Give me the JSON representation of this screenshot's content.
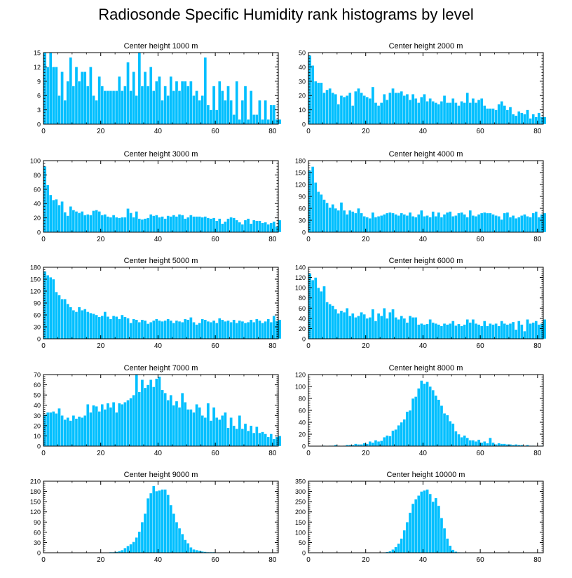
{
  "title": "Radiosonde Specific Humidity rank histograms by level",
  "colors": {
    "bar": "#00bfff",
    "bar_edge": "#ffffff",
    "axis": "#000000"
  },
  "chart_data": [
    {
      "type": "bar",
      "title": "Center height 1000 m",
      "xlim": [
        0,
        82
      ],
      "ylim": [
        0,
        15
      ],
      "xticks": [
        0,
        20,
        40,
        60,
        80
      ],
      "yticks": [
        0,
        3,
        6,
        9,
        12,
        15
      ],
      "values": [
        15,
        12,
        15,
        12,
        12,
        6,
        11,
        5,
        9,
        14,
        8,
        12,
        9,
        11,
        11,
        8,
        12,
        6,
        5,
        10,
        8,
        7,
        7,
        7,
        7,
        7,
        10,
        7,
        8,
        13,
        7,
        11,
        6,
        15,
        8,
        11,
        8,
        12,
        7,
        9,
        10,
        5,
        8,
        6,
        10,
        7,
        9,
        7,
        9,
        9,
        8,
        9,
        6,
        7,
        5,
        6,
        14,
        4,
        3,
        8,
        3,
        9,
        7,
        5,
        8,
        5,
        2,
        9,
        1,
        5,
        8,
        1,
        7,
        2,
        2,
        5,
        1,
        5,
        1,
        4,
        4,
        1,
        1
      ]
    },
    {
      "type": "bar",
      "title": "Center height 2000 m",
      "xlim": [
        0,
        82
      ],
      "ylim": [
        0,
        50
      ],
      "xticks": [
        0,
        20,
        40,
        60,
        80
      ],
      "yticks": [
        0,
        10,
        20,
        30,
        40,
        50
      ],
      "values": [
        48,
        41,
        30,
        29,
        29,
        22,
        24,
        25,
        22,
        21,
        14,
        20,
        19,
        20,
        22,
        13,
        23,
        25,
        22,
        20,
        19,
        18,
        26,
        15,
        13,
        15,
        21,
        17,
        22,
        25,
        22,
        22,
        23,
        20,
        21,
        17,
        21,
        18,
        15,
        19,
        21,
        16,
        18,
        16,
        15,
        14,
        16,
        20,
        15,
        15,
        18,
        15,
        13,
        16,
        15,
        22,
        15,
        18,
        15,
        17,
        18,
        13,
        11,
        11,
        11,
        10,
        14,
        16,
        13,
        10,
        12,
        7,
        6,
        9,
        8,
        7,
        10,
        4,
        7,
        5,
        8,
        5,
        5
      ]
    },
    {
      "type": "bar",
      "title": "Center height 3000 m",
      "xlim": [
        0,
        82
      ],
      "ylim": [
        0,
        100
      ],
      "xticks": [
        0,
        20,
        40,
        60,
        80
      ],
      "yticks": [
        0,
        20,
        40,
        60,
        80,
        100
      ],
      "values": [
        92,
        66,
        52,
        45,
        46,
        38,
        43,
        28,
        23,
        36,
        31,
        29,
        27,
        29,
        24,
        25,
        24,
        30,
        31,
        29,
        24,
        25,
        22,
        21,
        24,
        21,
        20,
        21,
        21,
        33,
        27,
        21,
        29,
        19,
        18,
        19,
        20,
        25,
        23,
        24,
        21,
        22,
        19,
        23,
        22,
        24,
        22,
        25,
        24,
        19,
        21,
        24,
        22,
        22,
        22,
        21,
        22,
        20,
        19,
        20,
        16,
        19,
        12,
        15,
        19,
        21,
        20,
        17,
        14,
        11,
        17,
        19,
        12,
        17,
        16,
        16,
        13,
        14,
        11,
        13,
        15,
        8,
        17
      ]
    },
    {
      "type": "bar",
      "title": "Center height 4000 m",
      "xlim": [
        0,
        82
      ],
      "ylim": [
        0,
        180
      ],
      "xticks": [
        0,
        20,
        40,
        60,
        80
      ],
      "yticks": [
        0,
        30,
        60,
        90,
        120,
        150,
        180
      ],
      "values": [
        155,
        165,
        125,
        102,
        95,
        82,
        74,
        62,
        70,
        60,
        55,
        75,
        55,
        45,
        55,
        52,
        48,
        60,
        48,
        40,
        38,
        35,
        50,
        38,
        40,
        42,
        45,
        48,
        50,
        48,
        45,
        42,
        48,
        45,
        42,
        50,
        40,
        38,
        45,
        55,
        40,
        42,
        38,
        52,
        40,
        50,
        38,
        45,
        50,
        52,
        40,
        42,
        48,
        50,
        45,
        38,
        55,
        42,
        40,
        45,
        48,
        50,
        48,
        48,
        45,
        42,
        40,
        32,
        48,
        50,
        38,
        42,
        35,
        38,
        42,
        45,
        40,
        38,
        48,
        52,
        38,
        45,
        48
      ]
    },
    {
      "type": "bar",
      "title": "Center height 5000 m",
      "xlim": [
        0,
        82
      ],
      "ylim": [
        0,
        180
      ],
      "xticks": [
        0,
        20,
        40,
        60,
        80
      ],
      "yticks": [
        0,
        30,
        60,
        90,
        120,
        150,
        180
      ],
      "values": [
        170,
        160,
        155,
        150,
        118,
        110,
        100,
        100,
        88,
        80,
        72,
        68,
        80,
        72,
        75,
        68,
        65,
        63,
        60,
        55,
        58,
        68,
        56,
        50,
        58,
        56,
        50,
        60,
        55,
        52,
        40,
        50,
        48,
        42,
        48,
        46,
        38,
        42,
        46,
        50,
        46,
        44,
        46,
        50,
        46,
        40,
        46,
        44,
        42,
        50,
        48,
        54,
        42,
        36,
        40,
        50,
        48,
        44,
        42,
        46,
        40,
        52,
        48,
        44,
        46,
        42,
        48,
        40,
        46,
        44,
        40,
        42,
        48,
        42,
        50,
        46,
        40,
        44,
        50,
        42,
        58,
        45,
        48
      ]
    },
    {
      "type": "bar",
      "title": "Center height 6000 m",
      "xlim": [
        0,
        82
      ],
      "ylim": [
        0,
        140
      ],
      "xticks": [
        0,
        20,
        40,
        60,
        80
      ],
      "yticks": [
        0,
        20,
        40,
        60,
        80,
        100,
        120,
        140
      ],
      "values": [
        128,
        115,
        120,
        100,
        93,
        103,
        72,
        68,
        65,
        58,
        50,
        55,
        52,
        60,
        45,
        50,
        42,
        45,
        52,
        48,
        40,
        42,
        58,
        35,
        50,
        45,
        60,
        40,
        52,
        58,
        42,
        38,
        45,
        40,
        32,
        45,
        42,
        42,
        28,
        30,
        28,
        29,
        38,
        32,
        30,
        28,
        25,
        30,
        28,
        30,
        35,
        26,
        29,
        25,
        28,
        38,
        32,
        38,
        30,
        28,
        25,
        35,
        25,
        30,
        28,
        30,
        25,
        35,
        30,
        28,
        30,
        33,
        18,
        35,
        28,
        15,
        38,
        30,
        32,
        35,
        28,
        30,
        38
      ]
    },
    {
      "type": "bar",
      "title": "Center height 7000 m",
      "xlim": [
        0,
        82
      ],
      "ylim": [
        0,
        70
      ],
      "xticks": [
        0,
        20,
        40,
        60,
        80
      ],
      "yticks": [
        0,
        10,
        20,
        30,
        40,
        50,
        60,
        70
      ],
      "values": [
        31,
        33,
        33,
        34,
        32,
        37,
        30,
        26,
        28,
        25,
        30,
        27,
        29,
        28,
        30,
        41,
        33,
        40,
        39,
        34,
        41,
        36,
        42,
        38,
        43,
        33,
        42,
        41,
        43,
        45,
        47,
        50,
        70,
        53,
        65,
        57,
        60,
        65,
        58,
        66,
        68,
        55,
        52,
        45,
        50,
        40,
        44,
        38,
        52,
        43,
        36,
        36,
        33,
        41,
        38,
        30,
        28,
        42,
        25,
        38,
        28,
        26,
        30,
        33,
        18,
        28,
        20,
        17,
        30,
        17,
        22,
        15,
        20,
        13,
        19,
        13,
        14,
        12,
        9,
        12,
        7,
        9,
        10
      ]
    },
    {
      "type": "bar",
      "title": "Center height 8000 m",
      "xlim": [
        0,
        82
      ],
      "ylim": [
        0,
        120
      ],
      "xticks": [
        0,
        20,
        40,
        60,
        80
      ],
      "yticks": [
        0,
        20,
        40,
        60,
        80,
        100,
        120
      ],
      "values": [
        0,
        0,
        0,
        0,
        0,
        1,
        0,
        1,
        1,
        2,
        1,
        0,
        1,
        2,
        2,
        2,
        4,
        3,
        3,
        5,
        4,
        8,
        6,
        10,
        8,
        9,
        15,
        18,
        17,
        26,
        28,
        35,
        40,
        45,
        58,
        60,
        80,
        83,
        97,
        110,
        105,
        108,
        100,
        94,
        85,
        78,
        68,
        55,
        52,
        42,
        38,
        25,
        20,
        15,
        18,
        14,
        10,
        10,
        8,
        11,
        6,
        8,
        5,
        14,
        6,
        3,
        5,
        4,
        4,
        3,
        3,
        2,
        3,
        2,
        2,
        1,
        2,
        1,
        1,
        0,
        0,
        1,
        0
      ]
    },
    {
      "type": "bar",
      "title": "Center height 9000 m",
      "xlim": [
        0,
        82
      ],
      "ylim": [
        0,
        210
      ],
      "xticks": [
        0,
        20,
        40,
        60,
        80
      ],
      "yticks": [
        0,
        30,
        60,
        90,
        120,
        150,
        180,
        210
      ],
      "values": [
        0,
        0,
        0,
        0,
        0,
        0,
        0,
        0,
        0,
        0,
        0,
        0,
        0,
        0,
        0,
        0,
        0,
        0,
        0,
        0,
        0,
        1,
        1,
        2,
        2,
        3,
        5,
        8,
        14,
        20,
        25,
        32,
        45,
        62,
        90,
        115,
        160,
        175,
        196,
        181,
        183,
        186,
        186,
        170,
        140,
        115,
        90,
        72,
        55,
        38,
        28,
        16,
        10,
        8,
        6,
        4,
        3,
        2,
        2,
        2,
        1,
        1,
        1,
        1,
        1,
        1,
        1,
        0,
        0,
        1,
        0,
        0,
        0,
        0,
        0,
        0,
        0,
        0,
        0,
        0,
        0,
        0,
        0
      ]
    },
    {
      "type": "bar",
      "title": "Center height 10000 m",
      "xlim": [
        0,
        82
      ],
      "ylim": [
        0,
        350
      ],
      "xticks": [
        0,
        20,
        40,
        60,
        80
      ],
      "yticks": [
        0,
        50,
        100,
        150,
        200,
        250,
        300,
        350
      ],
      "values": [
        0,
        0,
        0,
        0,
        0,
        0,
        0,
        0,
        0,
        0,
        0,
        0,
        0,
        0,
        0,
        0,
        0,
        0,
        0,
        0,
        0,
        0,
        0,
        0,
        0,
        1,
        2,
        4,
        8,
        16,
        28,
        45,
        70,
        110,
        150,
        196,
        240,
        262,
        280,
        300,
        305,
        310,
        288,
        250,
        268,
        230,
        170,
        120,
        70,
        35,
        15,
        6,
        3,
        2,
        1,
        0,
        0,
        0,
        0,
        0,
        0,
        0,
        0,
        0,
        0,
        0,
        0,
        0,
        0,
        0,
        0,
        0,
        0,
        0,
        0,
        0,
        0,
        0,
        0,
        0,
        0,
        0,
        0
      ]
    }
  ]
}
